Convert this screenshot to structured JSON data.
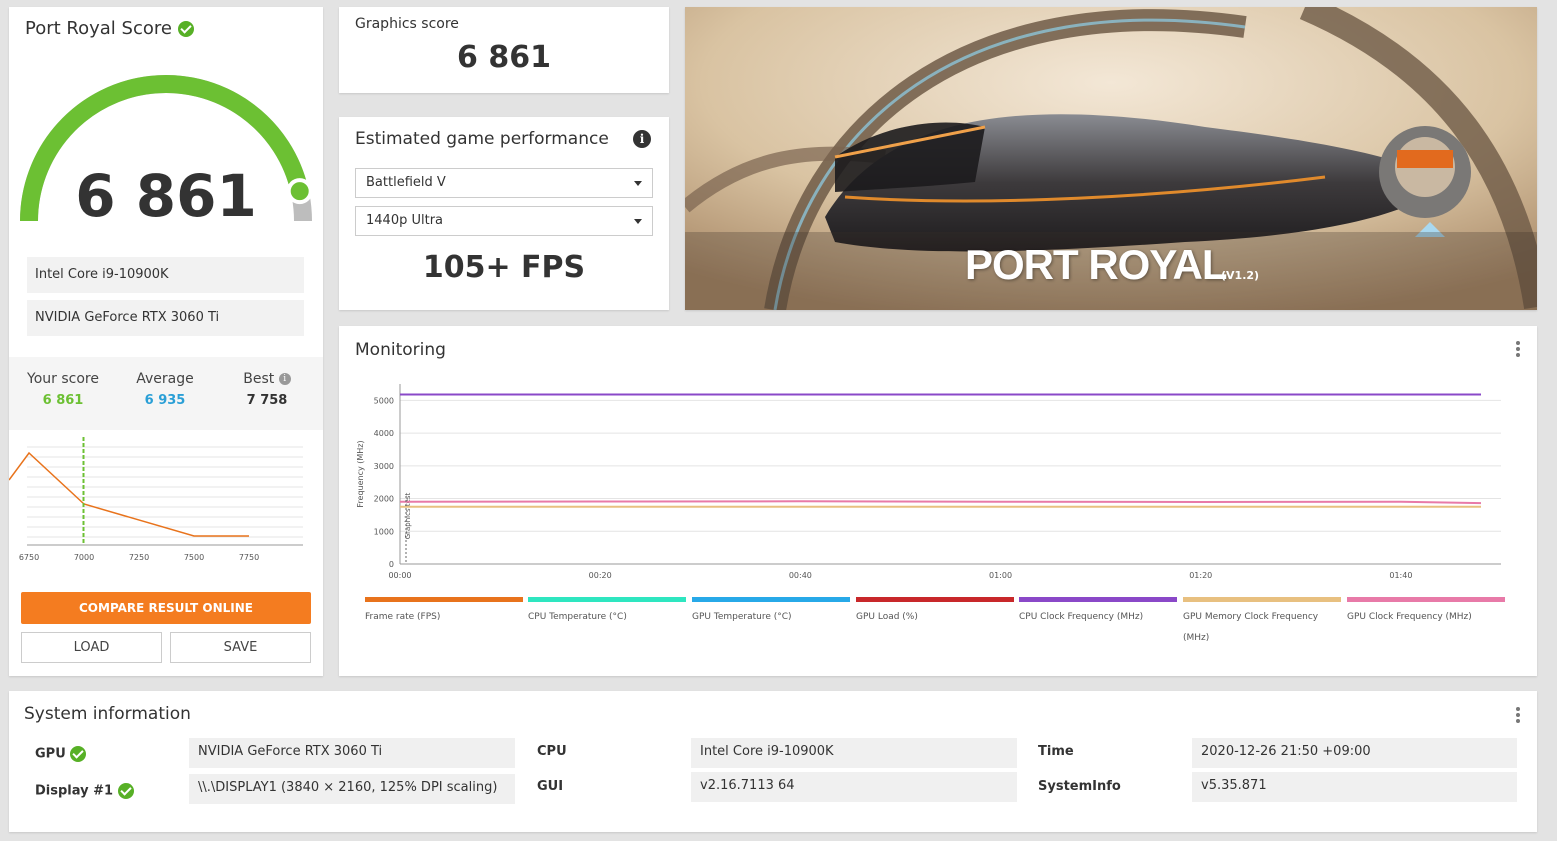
{
  "score": {
    "title": "Port Royal Score",
    "value": "6 861",
    "cpu": "Intel Core i9-10900K",
    "gpu": "NVIDIA GeForce RTX 3060 Ti",
    "gauge_level": 0.93,
    "compare": {
      "your_label": "Your score",
      "your_value": "6 861",
      "avg_label": "Average",
      "avg_value": "6 935",
      "best_label": "Best",
      "best_value": "7 758"
    },
    "dist_ticks": [
      "6750",
      "7000",
      "7250",
      "7500",
      "7750"
    ],
    "compare_button": "COMPARE RESULT ONLINE",
    "load_button": "LOAD",
    "save_button": "SAVE"
  },
  "graphics": {
    "label": "Graphics score",
    "value": "6 861"
  },
  "estimated": {
    "title": "Estimated game performance",
    "game": "Battlefield V",
    "preset": "1440p Ultra",
    "fps": "105+ FPS"
  },
  "banner": {
    "title": "PORT ROYAL",
    "version": "(V1.2)"
  },
  "monitoring": {
    "title": "Monitoring",
    "ylabel": "Frequency (MHz)",
    "marker_label": "Graphics test",
    "y_ticks": [
      "5000",
      "4000",
      "3000",
      "2000",
      "1000",
      "0"
    ],
    "x_ticks": [
      "00:00",
      "00:20",
      "00:40",
      "01:00",
      "01:20",
      "01:40"
    ],
    "legend": [
      {
        "name": "Frame rate (FPS)",
        "color": "#e8731c"
      },
      {
        "name": "CPU Temperature (°C)",
        "color": "#2ee6c0"
      },
      {
        "name": "GPU Temperature (°C)",
        "color": "#27a9e8"
      },
      {
        "name": "GPU Load (%)",
        "color": "#c8282a"
      },
      {
        "name": "CPU Clock Frequency (MHz)",
        "color": "#8a48c8"
      },
      {
        "name": "GPU Memory Clock Frequency (MHz)",
        "color": "#e8c080"
      },
      {
        "name": "GPU Clock Frequency (MHz)",
        "color": "#e87aa8"
      }
    ]
  },
  "chart_data": {
    "type": "line",
    "title": "Monitoring",
    "ylabel": "Frequency (MHz)",
    "ylim": [
      0,
      5000
    ],
    "xlim_seconds": [
      0,
      110
    ],
    "series": [
      {
        "name": "CPU Clock Frequency (MHz)",
        "x_seconds": [
          0,
          20,
          40,
          60,
          80,
          100,
          108
        ],
        "values": [
          5180,
          5180,
          5180,
          5180,
          5180,
          5180,
          5180
        ]
      },
      {
        "name": "GPU Clock Frequency (MHz)",
        "x_seconds": [
          0,
          20,
          40,
          60,
          80,
          100,
          108
        ],
        "values": [
          1905,
          1910,
          1915,
          1905,
          1895,
          1900,
          1860
        ]
      },
      {
        "name": "GPU Memory Clock Frequency (MHz)",
        "x_seconds": [
          0,
          20,
          40,
          60,
          80,
          100,
          108
        ],
        "values": [
          1750,
          1750,
          1750,
          1750,
          1750,
          1750,
          1750
        ]
      }
    ]
  },
  "sysinfo": {
    "title": "System information",
    "gpu_label": "GPU",
    "gpu_value": "NVIDIA GeForce RTX 3060 Ti",
    "display_label": "Display #1",
    "display_value": "\\\\.\\DISPLAY1 (3840 × 2160, 125% DPI scaling)",
    "cpu_label": "CPU",
    "cpu_value": "Intel Core i9-10900K",
    "gui_label": "GUI",
    "gui_value": "v2.16.7113 64",
    "time_label": "Time",
    "time_value": "2020-12-26 21:50 +09:00",
    "systeminfo_label": "SystemInfo",
    "systeminfo_value": "v5.35.871"
  },
  "colors": {
    "accent_green": "#6cc033",
    "orange": "#f47c20",
    "avg_blue": "#2a9fd6"
  }
}
